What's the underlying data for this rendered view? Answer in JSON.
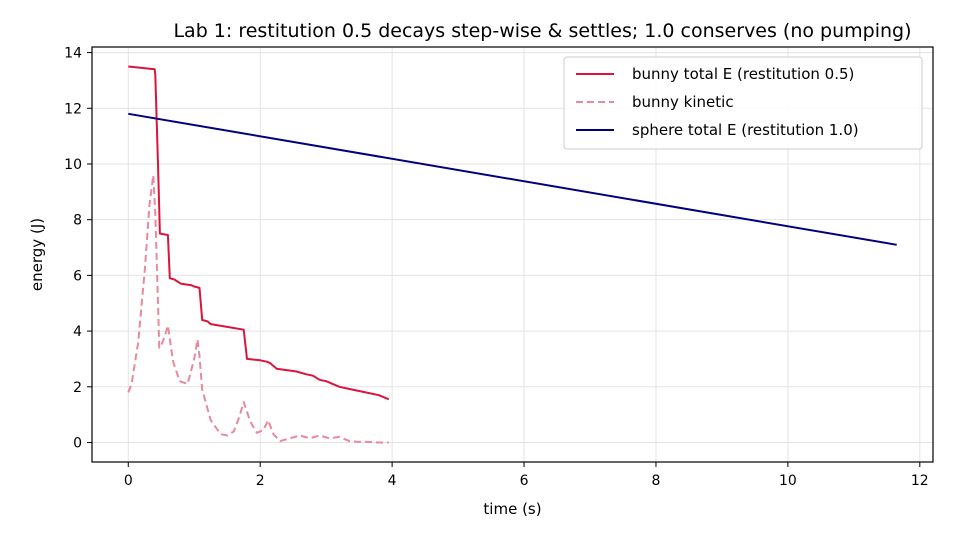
{
  "chart_data": {
    "type": "line",
    "title": "Lab 1: restitution 0.5 decays step-wise & settles;  1.0 conserves (no pumping)",
    "xlabel": "time (s)",
    "ylabel": "energy (J)",
    "xlim": [
      -0.55,
      12.2
    ],
    "ylim": [
      -0.7,
      14.2
    ],
    "xticks": [
      0,
      2,
      4,
      6,
      8,
      10,
      12
    ],
    "yticks": [
      0,
      2,
      4,
      6,
      8,
      10,
      12,
      14
    ],
    "grid": true,
    "legend_position": "top-right",
    "series": [
      {
        "name": "bunny total E (restitution 0.5)",
        "color": "#dc143c",
        "style": "solid",
        "x": [
          0,
          0.4,
          0.41,
          0.45,
          0.48,
          0.6,
          0.63,
          0.7,
          0.8,
          0.95,
          1.0,
          1.08,
          1.12,
          1.2,
          1.25,
          1.5,
          1.75,
          1.8,
          2.0,
          2.1,
          2.15,
          2.25,
          2.4,
          2.55,
          2.7,
          2.8,
          2.9,
          3.0,
          3.2,
          3.4,
          3.6,
          3.8,
          3.95
        ],
        "y": [
          13.5,
          13.4,
          13.2,
          10.0,
          7.5,
          7.45,
          5.9,
          5.85,
          5.7,
          5.65,
          5.6,
          5.55,
          4.4,
          4.35,
          4.25,
          4.15,
          4.05,
          3.0,
          2.95,
          2.9,
          2.85,
          2.65,
          2.6,
          2.55,
          2.45,
          2.4,
          2.25,
          2.2,
          2.0,
          1.9,
          1.8,
          1.7,
          1.55
        ]
      },
      {
        "name": "bunny kinetic",
        "color": "#e8899c",
        "style": "dashed",
        "x": [
          0,
          0.05,
          0.15,
          0.25,
          0.32,
          0.38,
          0.41,
          0.45,
          0.47,
          0.5,
          0.55,
          0.6,
          0.68,
          0.78,
          0.9,
          1.0,
          1.05,
          1.08,
          1.12,
          1.25,
          1.4,
          1.5,
          1.6,
          1.68,
          1.75,
          1.85,
          1.95,
          2.05,
          2.12,
          2.2,
          2.3,
          2.45,
          2.6,
          2.75,
          2.9,
          3.05,
          3.2,
          3.35,
          3.5,
          3.65,
          3.8,
          3.95
        ],
        "y": [
          1.8,
          2.1,
          3.6,
          6.2,
          8.5,
          9.6,
          8.2,
          5.0,
          3.4,
          3.5,
          3.8,
          4.2,
          2.9,
          2.2,
          2.1,
          3.0,
          3.7,
          3.1,
          1.9,
          0.8,
          0.3,
          0.25,
          0.4,
          0.9,
          1.45,
          0.75,
          0.35,
          0.45,
          0.8,
          0.3,
          0.05,
          0.15,
          0.25,
          0.15,
          0.25,
          0.15,
          0.2,
          0.05,
          0.02,
          0.02,
          0.0,
          0.0
        ]
      },
      {
        "name": "sphere total E (restitution 1.0)",
        "color": "#000080",
        "style": "solid",
        "x": [
          0,
          11.65
        ],
        "y": [
          11.8,
          7.1
        ]
      }
    ]
  }
}
